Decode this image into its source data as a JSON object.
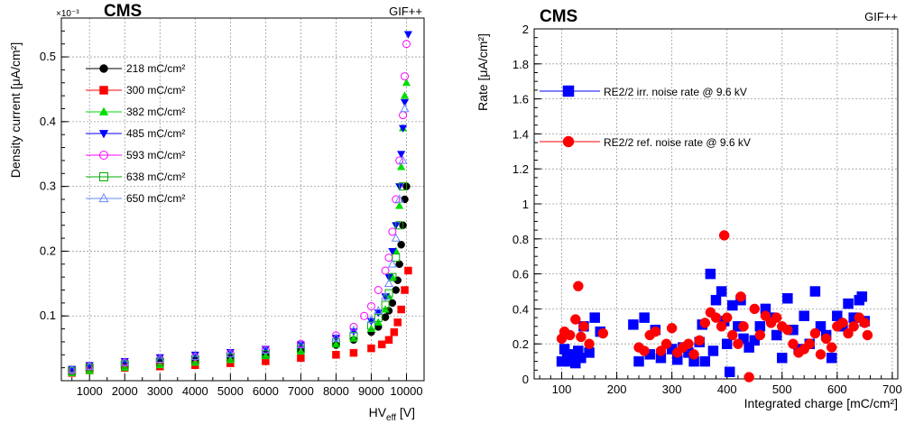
{
  "chart_data": [
    {
      "type": "scatter",
      "title": "",
      "label": "CMS",
      "facility": "GIF++",
      "xlabel": "HV",
      "xlabel_sub": "eff",
      "xlabel_unit": "[V]",
      "ylabel": "Density current [μA/cm²]",
      "y_exponent": "×10⁻³",
      "xlim": [
        200,
        10500
      ],
      "ylim": [
        0,
        0.56
      ],
      "xticks": [
        1000,
        2000,
        3000,
        4000,
        5000,
        6000,
        7000,
        8000,
        9000,
        10000
      ],
      "yticks": [
        0.1,
        0.2,
        0.3,
        0.4,
        0.5
      ],
      "ytick_labels": [
        "0.1",
        "0.2",
        "0.3",
        "0.4",
        "0.5"
      ],
      "grid": true,
      "legend_position": "top-left",
      "series": [
        {
          "name": "218 mC/cm²",
          "color": "#000000",
          "marker": "circle-filled",
          "x": [
            500,
            1000,
            2000,
            3000,
            4000,
            5000,
            6000,
            7000,
            8000,
            8500,
            9000,
            9200,
            9400,
            9500,
            9600,
            9700,
            9750,
            9800,
            9850,
            9900,
            9950,
            10000
          ],
          "y": [
            0.015,
            0.02,
            0.025,
            0.03,
            0.033,
            0.037,
            0.041,
            0.048,
            0.055,
            0.063,
            0.075,
            0.083,
            0.098,
            0.108,
            0.12,
            0.14,
            0.155,
            0.18,
            0.21,
            0.24,
            0.28,
            0.3
          ]
        },
        {
          "name": "300 mC/cm²",
          "color": "#ff0000",
          "marker": "square-filled",
          "x": [
            500,
            1000,
            2000,
            3000,
            4000,
            5000,
            6000,
            7000,
            8000,
            8500,
            9000,
            9300,
            9500,
            9650,
            9750,
            9850,
            9950,
            10050
          ],
          "y": [
            0.012,
            0.016,
            0.02,
            0.022,
            0.024,
            0.027,
            0.03,
            0.035,
            0.04,
            0.043,
            0.05,
            0.056,
            0.063,
            0.075,
            0.09,
            0.11,
            0.14,
            0.17
          ]
        },
        {
          "name": "382 mC/cm²",
          "color": "#00dd00",
          "marker": "triangle-up-filled",
          "x": [
            500,
            1000,
            2000,
            3000,
            4000,
            5000,
            6000,
            7000,
            8000,
            8500,
            9000,
            9200,
            9400,
            9500,
            9600,
            9700,
            9800,
            9850,
            9900,
            9950,
            10000
          ],
          "y": [
            0.012,
            0.015,
            0.02,
            0.024,
            0.028,
            0.032,
            0.038,
            0.045,
            0.056,
            0.065,
            0.08,
            0.09,
            0.11,
            0.13,
            0.16,
            0.2,
            0.27,
            0.33,
            0.39,
            0.44,
            0.46
          ]
        },
        {
          "name": "485 mC/cm²",
          "color": "#0000ff",
          "marker": "triangle-down-filled",
          "x": [
            500,
            1000,
            2000,
            3000,
            4000,
            5000,
            6000,
            7000,
            8000,
            8500,
            9000,
            9200,
            9400,
            9500,
            9600,
            9700,
            9800,
            9850,
            9900,
            9950,
            10050
          ],
          "y": [
            0.018,
            0.024,
            0.03,
            0.036,
            0.04,
            0.044,
            0.049,
            0.056,
            0.066,
            0.076,
            0.092,
            0.105,
            0.13,
            0.16,
            0.2,
            0.24,
            0.3,
            0.35,
            0.39,
            0.43,
            0.535
          ]
        },
        {
          "name": "593 mC/cm²",
          "color": "#ff00ff",
          "marker": "circle-open",
          "x": [
            500,
            1000,
            2000,
            3000,
            4000,
            5000,
            6000,
            7000,
            8000,
            8500,
            8800,
            9000,
            9200,
            9400,
            9500,
            9600,
            9700,
            9800,
            9900,
            9950,
            10000
          ],
          "y": [
            0.016,
            0.022,
            0.028,
            0.033,
            0.037,
            0.042,
            0.048,
            0.057,
            0.07,
            0.083,
            0.1,
            0.115,
            0.14,
            0.17,
            0.19,
            0.23,
            0.28,
            0.34,
            0.41,
            0.47,
            0.52
          ]
        },
        {
          "name": "638 mC/cm²",
          "color": "#00aa00",
          "marker": "square-open",
          "x": [
            500,
            1000,
            2000,
            3000,
            4000,
            5000,
            6000,
            7000,
            8000,
            8500,
            9000,
            9200,
            9400,
            9500,
            9600,
            9700,
            9800,
            9900
          ],
          "y": [
            0.015,
            0.02,
            0.025,
            0.029,
            0.032,
            0.036,
            0.041,
            0.049,
            0.059,
            0.069,
            0.085,
            0.097,
            0.117,
            0.135,
            0.16,
            0.19,
            0.24,
            0.3
          ]
        },
        {
          "name": "650 mC/cm²",
          "color": "#6688ff",
          "marker": "triangle-up-open",
          "x": [
            500,
            1000,
            2000,
            3000,
            4000,
            5000,
            6000,
            7000,
            8000,
            8500,
            9000,
            9200,
            9400,
            9500,
            9600,
            9700,
            9800,
            9900,
            9950
          ],
          "y": [
            0.017,
            0.022,
            0.028,
            0.033,
            0.037,
            0.041,
            0.047,
            0.055,
            0.066,
            0.078,
            0.094,
            0.108,
            0.13,
            0.15,
            0.18,
            0.22,
            0.28,
            0.34,
            0.42
          ]
        }
      ]
    },
    {
      "type": "scatter",
      "title": "",
      "label": "CMS",
      "facility": "GIF++",
      "xlabel": "Integrated charge [mC/cm²]",
      "ylabel": "Rate [μA/cm²]",
      "xlim": [
        50,
        710
      ],
      "ylim": [
        0,
        2
      ],
      "xticks": [
        100,
        200,
        300,
        400,
        500,
        600,
        700
      ],
      "yticks": [
        0,
        0.2,
        0.4,
        0.6,
        0.8,
        1,
        1.2,
        1.4,
        1.6,
        1.8,
        2
      ],
      "ytick_labels": [
        "0",
        "0.2",
        "0.4",
        "0.6",
        "0.8",
        "1",
        "1.2",
        "1.4",
        "1.6",
        "1.8",
        "2"
      ],
      "grid": true,
      "legend_position": "top-left",
      "series": [
        {
          "name": "RE2/2 irr. noise rate @ 9.6 kV",
          "color": "#0000ff",
          "marker": "square-filled",
          "x": [
            100,
            105,
            110,
            115,
            120,
            125,
            130,
            135,
            140,
            150,
            160,
            170,
            230,
            240,
            250,
            260,
            270,
            280,
            300,
            310,
            320,
            330,
            340,
            350,
            355,
            360,
            370,
            375,
            380,
            390,
            395,
            400,
            405,
            410,
            420,
            425,
            430,
            440,
            450,
            460,
            470,
            480,
            490,
            500,
            510,
            520,
            530,
            540,
            550,
            560,
            570,
            580,
            590,
            600,
            610,
            620,
            630,
            640,
            645,
            650
          ],
          "y": [
            0.1,
            0.17,
            0.12,
            0.1,
            0.14,
            0.09,
            0.16,
            0.12,
            0.3,
            0.15,
            0.35,
            0.27,
            0.31,
            0.1,
            0.35,
            0.14,
            0.28,
            0.12,
            0.17,
            0.11,
            0.18,
            0.15,
            0.1,
            0.21,
            0.31,
            0.1,
            0.6,
            0.16,
            0.45,
            0.5,
            0.33,
            0.2,
            0.04,
            0.42,
            0.3,
            0.45,
            0.23,
            0.18,
            0.22,
            0.3,
            0.4,
            0.35,
            0.25,
            0.12,
            0.46,
            0.28,
            0.17,
            0.36,
            0.2,
            0.5,
            0.3,
            0.25,
            0.12,
            0.36,
            0.3,
            0.43,
            0.35,
            0.45,
            0.47,
            0.33
          ]
        },
        {
          "name": "RE2/2 ref. noise rate @ 9.6 kV",
          "color": "#ff0000",
          "marker": "circle-filled",
          "x": [
            100,
            105,
            115,
            125,
            130,
            135,
            140,
            150,
            175,
            240,
            250,
            260,
            270,
            280,
            290,
            300,
            310,
            320,
            330,
            340,
            350,
            360,
            370,
            380,
            390,
            395,
            400,
            410,
            420,
            425,
            430,
            440,
            450,
            460,
            470,
            480,
            490,
            500,
            510,
            520,
            530,
            540,
            550,
            560,
            570,
            580,
            590,
            600,
            610,
            620,
            630,
            640,
            650,
            655
          ],
          "y": [
            0.23,
            0.27,
            0.25,
            0.34,
            0.53,
            0.24,
            0.3,
            0.2,
            0.26,
            0.18,
            0.16,
            0.25,
            0.27,
            0.16,
            0.2,
            0.29,
            0.15,
            0.18,
            0.2,
            0.14,
            0.22,
            0.32,
            0.38,
            0.35,
            0.3,
            0.82,
            0.35,
            0.25,
            0.2,
            0.47,
            0.3,
            0.01,
            0.4,
            0.25,
            0.36,
            0.32,
            0.35,
            0.3,
            0.28,
            0.2,
            0.15,
            0.17,
            0.2,
            0.26,
            0.14,
            0.23,
            0.18,
            0.3,
            0.32,
            0.26,
            0.3,
            0.35,
            0.32,
            0.25
          ]
        }
      ]
    }
  ]
}
